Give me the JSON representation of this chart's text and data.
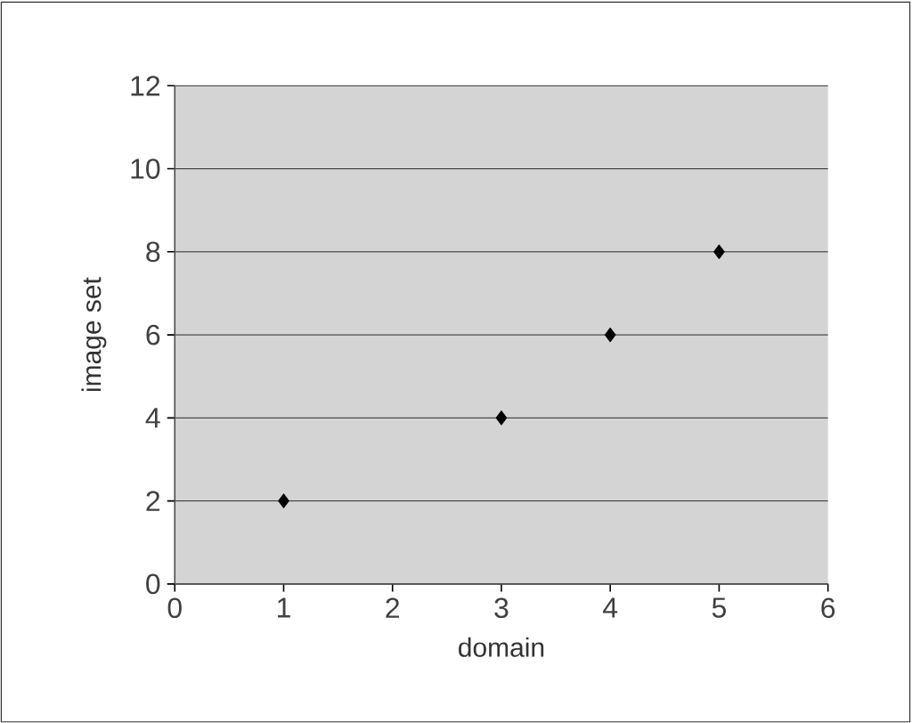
{
  "chart_data": {
    "type": "scatter",
    "xlabel": "domain",
    "ylabel": "image set",
    "x": [
      1,
      3,
      4,
      5
    ],
    "series": [
      {
        "color": "#000000",
        "values": [
          2,
          4,
          6,
          8
        ]
      }
    ],
    "xlim": [
      0,
      6
    ],
    "ylim": [
      0,
      12
    ],
    "xticks": [
      0,
      1,
      2,
      3,
      4,
      5,
      6
    ],
    "yticks": [
      0,
      2,
      4,
      6,
      8,
      10,
      12
    ],
    "grid": "y",
    "marker": "diamond"
  }
}
